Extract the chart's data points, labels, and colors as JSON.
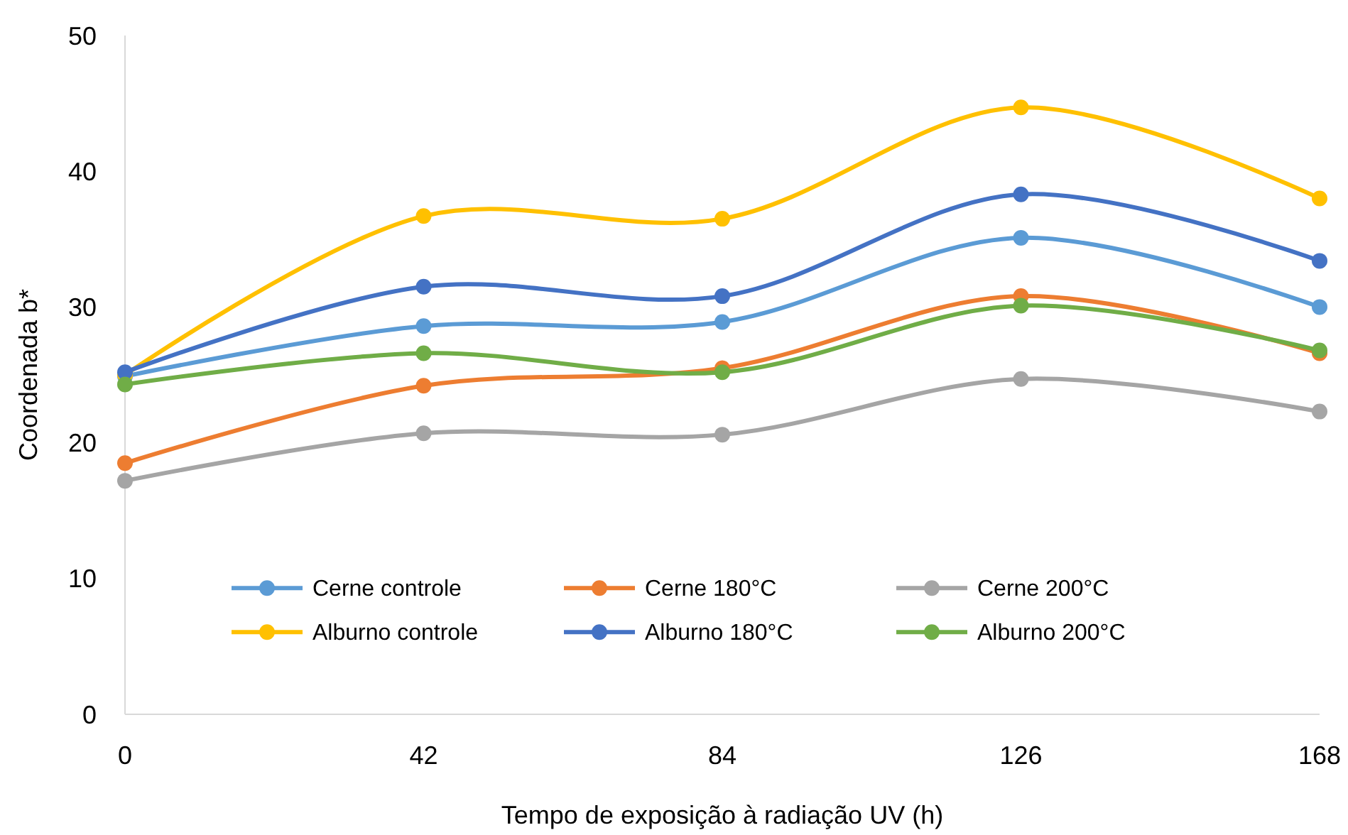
{
  "chart_data": {
    "type": "line",
    "xlabel": "Tempo de exposição à radiação UV (h)",
    "ylabel": "Coordenada b*",
    "x": [
      0,
      42,
      84,
      126,
      168
    ],
    "xlim": [
      0,
      168
    ],
    "xticks": [
      0,
      42,
      84,
      126,
      168
    ],
    "ylim": [
      0,
      50
    ],
    "yticks": [
      0,
      10,
      20,
      30,
      40,
      50
    ],
    "grid": false,
    "legend": "bottom",
    "marker": "circle",
    "line_style": "solid",
    "series": [
      {
        "name": "Cerne controle",
        "color": "#5b9bd5",
        "values": [
          24.9,
          28.6,
          28.9,
          35.1,
          30.0
        ]
      },
      {
        "name": "Cerne 180°C",
        "color": "#ed7d31",
        "values": [
          18.5,
          24.2,
          25.5,
          30.8,
          26.6
        ]
      },
      {
        "name": "Cerne 200°C",
        "color": "#a5a5a5",
        "values": [
          17.2,
          20.7,
          20.6,
          24.7,
          22.3
        ]
      },
      {
        "name": "Alburno controle",
        "color": "#ffc000",
        "values": [
          25.0,
          36.7,
          36.5,
          44.7,
          38.0
        ]
      },
      {
        "name": "Alburno 180°C",
        "color": "#4472c4",
        "values": [
          25.2,
          31.5,
          30.8,
          38.3,
          33.4
        ]
      },
      {
        "name": "Alburno 200°C",
        "color": "#70ad47",
        "values": [
          24.3,
          26.6,
          25.2,
          30.1,
          26.8
        ]
      }
    ]
  }
}
